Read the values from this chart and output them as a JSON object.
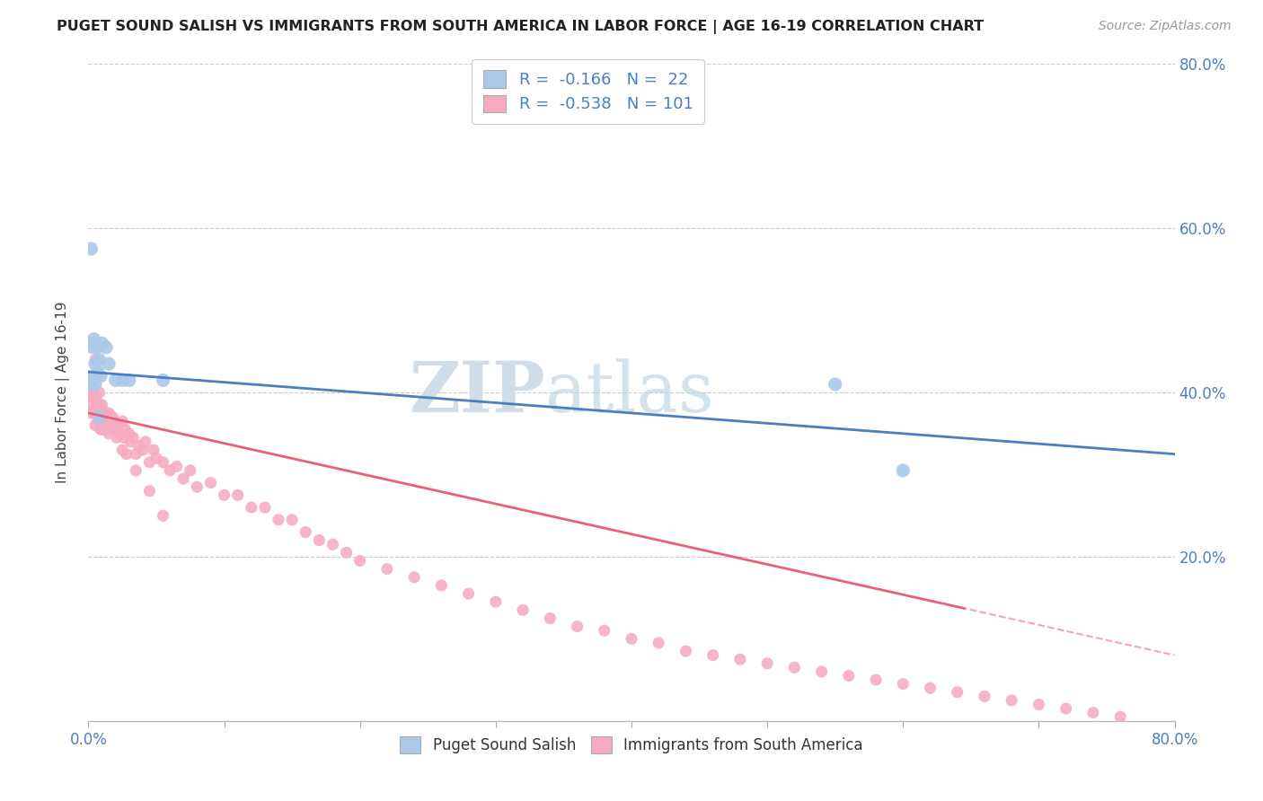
{
  "title": "PUGET SOUND SALISH VS IMMIGRANTS FROM SOUTH AMERICA IN LABOR FORCE | AGE 16-19 CORRELATION CHART",
  "source": "Source: ZipAtlas.com",
  "ylabel": "In Labor Force | Age 16-19",
  "xmin": 0.0,
  "xmax": 0.8,
  "ymin": 0.0,
  "ymax": 0.8,
  "series1_name": "Puget Sound Salish",
  "series2_name": "Immigrants from South America",
  "series1_R": "-0.166",
  "series1_N": "22",
  "series2_R": "-0.538",
  "series2_N": "101",
  "series1_color": "#aac9e8",
  "series2_color": "#f5aabf",
  "series1_line_color": "#4a7fc1",
  "series2_line_color": "#e8607a",
  "background_color": "#ffffff",
  "grid_color": "#cccccc",
  "watermark_color": "#d0dce8",
  "s1_x": [
    0.001,
    0.002,
    0.003,
    0.003,
    0.004,
    0.005,
    0.005,
    0.006,
    0.007,
    0.008,
    0.009,
    0.01,
    0.013,
    0.015,
    0.02,
    0.025,
    0.03,
    0.055,
    0.55,
    0.6,
    0.002,
    0.008
  ],
  "s1_y": [
    0.415,
    0.575,
    0.42,
    0.455,
    0.465,
    0.41,
    0.435,
    0.455,
    0.425,
    0.44,
    0.42,
    0.46,
    0.455,
    0.435,
    0.415,
    0.415,
    0.415,
    0.415,
    0.41,
    0.305,
    0.41,
    0.37
  ],
  "s2_x": [
    0.001,
    0.002,
    0.002,
    0.003,
    0.003,
    0.004,
    0.004,
    0.005,
    0.005,
    0.006,
    0.006,
    0.007,
    0.007,
    0.008,
    0.008,
    0.009,
    0.009,
    0.01,
    0.01,
    0.011,
    0.012,
    0.013,
    0.014,
    0.015,
    0.016,
    0.017,
    0.018,
    0.019,
    0.02,
    0.021,
    0.022,
    0.023,
    0.025,
    0.026,
    0.027,
    0.028,
    0.03,
    0.031,
    0.033,
    0.035,
    0.037,
    0.04,
    0.042,
    0.045,
    0.048,
    0.05,
    0.055,
    0.06,
    0.065,
    0.07,
    0.075,
    0.08,
    0.09,
    0.1,
    0.11,
    0.12,
    0.13,
    0.14,
    0.15,
    0.16,
    0.17,
    0.18,
    0.19,
    0.2,
    0.22,
    0.24,
    0.26,
    0.28,
    0.3,
    0.32,
    0.34,
    0.36,
    0.38,
    0.4,
    0.42,
    0.44,
    0.46,
    0.48,
    0.5,
    0.52,
    0.54,
    0.56,
    0.58,
    0.6,
    0.62,
    0.64,
    0.66,
    0.68,
    0.7,
    0.72,
    0.74,
    0.76,
    0.003,
    0.005,
    0.007,
    0.009,
    0.015,
    0.025,
    0.035,
    0.045,
    0.055
  ],
  "s2_y": [
    0.41,
    0.395,
    0.375,
    0.405,
    0.385,
    0.395,
    0.375,
    0.38,
    0.36,
    0.395,
    0.375,
    0.385,
    0.365,
    0.4,
    0.36,
    0.375,
    0.355,
    0.385,
    0.355,
    0.375,
    0.365,
    0.375,
    0.355,
    0.375,
    0.365,
    0.355,
    0.37,
    0.355,
    0.365,
    0.345,
    0.36,
    0.35,
    0.365,
    0.345,
    0.355,
    0.325,
    0.35,
    0.34,
    0.345,
    0.325,
    0.335,
    0.33,
    0.34,
    0.315,
    0.33,
    0.32,
    0.315,
    0.305,
    0.31,
    0.295,
    0.305,
    0.285,
    0.29,
    0.275,
    0.275,
    0.26,
    0.26,
    0.245,
    0.245,
    0.23,
    0.22,
    0.215,
    0.205,
    0.195,
    0.185,
    0.175,
    0.165,
    0.155,
    0.145,
    0.135,
    0.125,
    0.115,
    0.11,
    0.1,
    0.095,
    0.085,
    0.08,
    0.075,
    0.07,
    0.065,
    0.06,
    0.055,
    0.05,
    0.045,
    0.04,
    0.035,
    0.03,
    0.025,
    0.02,
    0.015,
    0.01,
    0.005,
    0.46,
    0.44,
    0.42,
    0.385,
    0.35,
    0.33,
    0.305,
    0.28,
    0.25
  ]
}
